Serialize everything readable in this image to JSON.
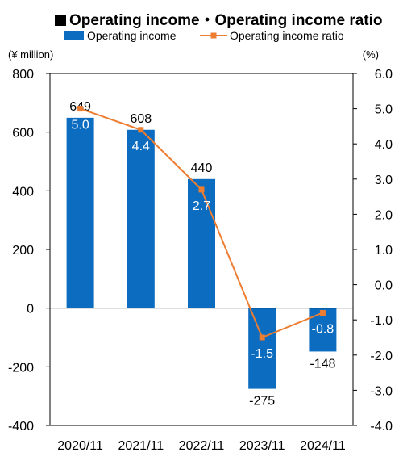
{
  "title": "Operating income・Operating income ratio",
  "colors": {
    "bar": "#0b6cc0",
    "line": "#ed7d31",
    "frame": "#000000",
    "axis_text": "#000000"
  },
  "chart_data": {
    "type": "bar",
    "categories": [
      "2020/11",
      "2021/11",
      "2022/11",
      "2023/11",
      "2024/11"
    ],
    "series": [
      {
        "name": "Operating income",
        "kind": "bar",
        "axis": "left",
        "values": [
          649,
          608,
          440,
          -275,
          -148
        ],
        "labels": [
          "649",
          "608",
          "440",
          "-275",
          "-148"
        ]
      },
      {
        "name": "Operating income ratio",
        "kind": "line",
        "axis": "right",
        "values": [
          5.0,
          4.4,
          2.7,
          -1.5,
          -0.8
        ],
        "labels": [
          "5.0",
          "4.4",
          "2.7",
          "-1.5",
          "-0.8"
        ]
      }
    ],
    "y_left": {
      "unit": "(¥ million)",
      "min": -400,
      "max": 800,
      "ticks": [
        800,
        600,
        400,
        200,
        0,
        -200,
        -400
      ],
      "tick_labels": [
        "800",
        "600",
        "400",
        "200",
        "0",
        "-200",
        "-400"
      ]
    },
    "y_right": {
      "unit": "(%)",
      "min": -4.0,
      "max": 6.0,
      "ticks": [
        6.0,
        5.0,
        4.0,
        3.0,
        2.0,
        1.0,
        0.0,
        -1.0,
        -2.0,
        -3.0,
        -4.0
      ],
      "tick_labels": [
        "6.0",
        "5.0",
        "4.0",
        "3.0",
        "2.0",
        "1.0",
        "0.0",
        "-1.0",
        "-2.0",
        "-3.0",
        "-4.0"
      ]
    },
    "legend": {
      "placement": "top",
      "entries": [
        "Operating income",
        "Operating income ratio"
      ]
    },
    "grid": false
  }
}
